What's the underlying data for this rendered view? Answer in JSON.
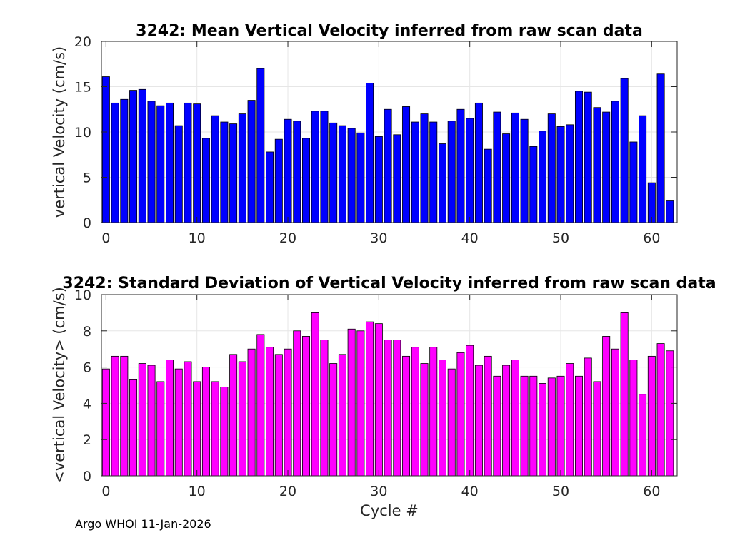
{
  "chart_data": [
    {
      "type": "bar",
      "title": "3242: Mean Vertical Velocity inferred from raw scan data",
      "xlabel": "",
      "ylabel": "vertical Velocity (cm/s)",
      "ylim": [
        0,
        20
      ],
      "xlim": [
        -0.5,
        62.8
      ],
      "xticks": [
        0,
        10,
        20,
        30,
        40,
        50,
        60
      ],
      "yticks": [
        0,
        5,
        10,
        15,
        20
      ],
      "grid": true,
      "bar_color": "#0000ff",
      "x": [
        0,
        1,
        2,
        3,
        4,
        5,
        6,
        7,
        8,
        9,
        10,
        11,
        12,
        13,
        14,
        15,
        16,
        17,
        18,
        19,
        20,
        21,
        22,
        23,
        24,
        25,
        26,
        27,
        28,
        29,
        30,
        31,
        32,
        33,
        34,
        35,
        36,
        37,
        38,
        39,
        40,
        41,
        42,
        43,
        44,
        45,
        46,
        47,
        48,
        49,
        50,
        51,
        52,
        53,
        54,
        55,
        56,
        57,
        58,
        59,
        60,
        61,
        62
      ],
      "values": [
        16.1,
        13.2,
        13.6,
        14.6,
        14.7,
        13.4,
        12.9,
        13.2,
        10.7,
        13.2,
        13.1,
        9.3,
        11.8,
        11.1,
        10.9,
        12.0,
        13.5,
        17.0,
        7.8,
        9.2,
        11.4,
        11.2,
        9.3,
        12.3,
        12.3,
        11.0,
        10.7,
        10.4,
        9.9,
        15.4,
        9.5,
        12.5,
        9.7,
        12.8,
        11.1,
        12.0,
        11.1,
        8.7,
        11.2,
        12.5,
        11.5,
        13.2,
        8.1,
        12.2,
        9.8,
        12.1,
        11.4,
        8.4,
        10.1,
        12.0,
        10.6,
        10.8,
        14.5,
        14.4,
        12.7,
        12.2,
        13.4,
        15.9,
        8.9,
        11.8,
        4.4,
        16.4,
        2.4
      ]
    },
    {
      "type": "bar",
      "title": "3242: Standard Deviation of Vertical Velocity inferred from raw scan data",
      "xlabel": "Cycle #",
      "ylabel": "<vertical Velocity> (cm/s)",
      "ylim": [
        0,
        10
      ],
      "xlim": [
        -0.5,
        62.8
      ],
      "xticks": [
        0,
        10,
        20,
        30,
        40,
        50,
        60
      ],
      "yticks": [
        0,
        2,
        4,
        6,
        8,
        10
      ],
      "grid": true,
      "bar_color": "#ff00ff",
      "x": [
        0,
        1,
        2,
        3,
        4,
        5,
        6,
        7,
        8,
        9,
        10,
        11,
        12,
        13,
        14,
        15,
        16,
        17,
        18,
        19,
        20,
        21,
        22,
        23,
        24,
        25,
        26,
        27,
        28,
        29,
        30,
        31,
        32,
        33,
        34,
        35,
        36,
        37,
        38,
        39,
        40,
        41,
        42,
        43,
        44,
        45,
        46,
        47,
        48,
        49,
        50,
        51,
        52,
        53,
        54,
        55,
        56,
        57,
        58,
        59,
        60,
        61,
        62
      ],
      "values": [
        5.9,
        6.6,
        6.6,
        5.3,
        6.2,
        6.1,
        5.2,
        6.4,
        5.9,
        6.3,
        5.2,
        6.0,
        5.2,
        4.9,
        6.7,
        6.3,
        7.0,
        7.8,
        7.1,
        6.7,
        7.0,
        8.0,
        7.7,
        9.0,
        7.5,
        6.2,
        6.7,
        8.1,
        8.0,
        8.5,
        8.4,
        7.5,
        7.5,
        6.6,
        7.1,
        6.2,
        7.1,
        6.4,
        5.9,
        6.8,
        7.2,
        6.1,
        6.6,
        5.5,
        6.1,
        6.4,
        5.5,
        5.5,
        5.1,
        5.4,
        5.5,
        6.2,
        5.5,
        6.5,
        5.2,
        7.7,
        7.0,
        9.0,
        6.4,
        4.5,
        6.6,
        7.3,
        6.9
      ]
    }
  ],
  "footer": "Argo WHOI 11-Jan-2026"
}
